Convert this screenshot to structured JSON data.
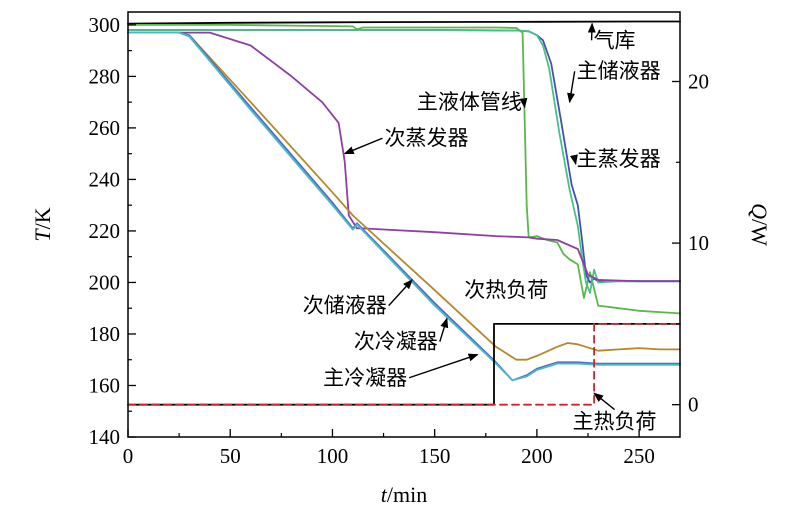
{
  "chart_data": {
    "type": "line",
    "x_axis": {
      "label_italic": "t",
      "label_unit": "/min",
      "range": [
        0,
        270
      ],
      "ticks": [
        0,
        50,
        100,
        150,
        200,
        250
      ]
    },
    "y_left": {
      "label_italic": "T",
      "label_unit": "/K",
      "range": [
        140,
        305
      ],
      "ticks": [
        140,
        160,
        180,
        200,
        220,
        240,
        260,
        280,
        300
      ]
    },
    "y_right": {
      "label_italic": "Q",
      "label_unit": "/W",
      "range": [
        -2,
        24.3
      ],
      "ticks": [
        0,
        10,
        20
      ]
    },
    "grid": false,
    "series": [
      {
        "name": "气库",
        "axis": "left",
        "color": "#000000",
        "x": [
          0,
          50,
          100,
          150,
          200,
          250,
          270
        ],
        "y": [
          300.5,
          300.8,
          301,
          301.1,
          301.2,
          301.3,
          301.3
        ]
      },
      {
        "name": "主液体管线",
        "axis": "left",
        "color": "#59b84a",
        "x": [
          0,
          50,
          90,
          110,
          112,
          115,
          150,
          180,
          190,
          193,
          195,
          196,
          200,
          205,
          210,
          213,
          216,
          220,
          223,
          226,
          230,
          240,
          250,
          260,
          270
        ],
        "y": [
          300,
          300,
          299.6,
          299.4,
          298.3,
          299,
          299,
          299,
          298.8,
          297,
          230,
          217.5,
          218,
          216.5,
          215.5,
          211,
          209,
          207,
          194,
          204,
          191,
          190,
          189,
          188.5,
          188
        ]
      },
      {
        "name": "主储液器",
        "axis": "left",
        "color": "#3d55b0",
        "x": [
          0,
          100,
          150,
          190,
          196,
          200,
          203,
          207,
          212,
          217,
          220,
          222,
          224,
          226,
          228,
          230,
          240,
          250,
          260,
          270
        ],
        "y": [
          298,
          298,
          298,
          297.8,
          297.5,
          296,
          294,
          285,
          262,
          238,
          230,
          217,
          203,
          200,
          201.5,
          200.5,
          200.5,
          200.5,
          200.5,
          200.5
        ]
      },
      {
        "name": "主蒸发器",
        "axis": "left",
        "color": "#4bbf88",
        "x": [
          0,
          100,
          150,
          190,
          196,
          200,
          203,
          206,
          211,
          216,
          220,
          222,
          224,
          226,
          228,
          230,
          240,
          250,
          260,
          270
        ],
        "y": [
          298,
          298,
          298,
          297.8,
          297.5,
          296,
          292,
          283,
          258,
          236,
          222,
          210,
          200,
          196,
          205,
          200,
          200.5,
          200.5,
          200.5,
          200.5
        ]
      },
      {
        "name": "次蒸发器",
        "axis": "left",
        "color": "#8e3fa6",
        "x": [
          0,
          40,
          60,
          80,
          95,
          103,
          106,
          108,
          112,
          115,
          150,
          180,
          196,
          200,
          210,
          220,
          225,
          230,
          250,
          270
        ],
        "y": [
          297,
          297,
          292,
          280,
          270,
          262,
          247,
          226,
          221,
          221,
          219.5,
          218,
          217.5,
          217,
          216.5,
          213,
          203,
          201,
          200.5,
          200.5
        ]
      },
      {
        "name": "次储液器",
        "axis": "left",
        "color": "#b8862b",
        "x": [
          0,
          25,
          30,
          60,
          100,
          110,
          150,
          180,
          190,
          195,
          200,
          210,
          215,
          220,
          230,
          240,
          250,
          260,
          270
        ],
        "y": [
          297,
          297,
          296,
          270,
          235,
          226,
          197,
          175,
          170,
          170,
          171.5,
          175,
          176.5,
          176,
          173.5,
          174,
          174.5,
          174,
          174
        ]
      },
      {
        "name": "次冷凝器",
        "axis": "left",
        "color": "#4b6fc3",
        "x": [
          0,
          25,
          30,
          60,
          100,
          110,
          112,
          150,
          180,
          188,
          195,
          200,
          210,
          220,
          230,
          240,
          250,
          260,
          270
        ],
        "y": [
          297,
          297,
          296,
          268,
          231,
          221,
          223,
          192,
          169,
          162,
          164,
          166.5,
          169,
          169,
          168.5,
          168.5,
          168.5,
          168.5,
          168.5
        ]
      },
      {
        "name": "主冷凝器",
        "axis": "left",
        "color": "#4fb8c8",
        "x": [
          0,
          25,
          30,
          60,
          100,
          110,
          112,
          150,
          180,
          188,
          195,
          200,
          210,
          220,
          230,
          240,
          250,
          260,
          270
        ],
        "y": [
          297,
          297,
          295.5,
          267,
          230,
          220.5,
          222.5,
          191,
          168.5,
          162,
          163.5,
          166,
          168.5,
          168.5,
          168,
          168,
          168,
          168,
          168
        ]
      },
      {
        "name": "次热负荷",
        "axis": "right",
        "color": "#000000",
        "step": true,
        "x": [
          0,
          179,
          179,
          270
        ],
        "y": [
          0,
          0,
          5,
          5
        ]
      },
      {
        "name": "主热负荷",
        "axis": "right",
        "color": "#d6202a",
        "dashed": true,
        "step": true,
        "x": [
          0,
          228,
          228,
          270
        ],
        "y": [
          0,
          0,
          5,
          5
        ]
      }
    ],
    "annotations": [
      {
        "text": "气库",
        "tx": 238,
        "ty": 294,
        "ax": 227,
        "ay": 300.5
      },
      {
        "text": "主液体管线",
        "tx": 167,
        "ty": 270,
        "ax": 194,
        "ay": 268
      },
      {
        "text": "主储液器",
        "tx": 240,
        "ty": 282,
        "ax": 216,
        "ay": 270
      },
      {
        "text": "次蒸发器",
        "tx": 146,
        "ty": 256,
        "ax": 106,
        "ay": 250
      },
      {
        "text": "主蒸发器",
        "tx": 240,
        "ty": 248,
        "ax": 219,
        "ay": 246
      },
      {
        "text": "次储液器",
        "tx": 106,
        "ty": 191,
        "ax": 139,
        "ay": 201
      },
      {
        "text": "次冷凝器",
        "tx": 131,
        "ty": 177,
        "ax": 156,
        "ay": 186
      },
      {
        "text": "主冷凝器",
        "tx": 116,
        "ty": 163,
        "ax": 171,
        "ay": 172
      },
      {
        "text": "次热负荷",
        "tx": 185,
        "ty": 197,
        "ax": null,
        "ay": null
      },
      {
        "text": "主热负荷",
        "tx": 238,
        "ty": 146,
        "ax": 228,
        "ay": 157
      }
    ]
  }
}
